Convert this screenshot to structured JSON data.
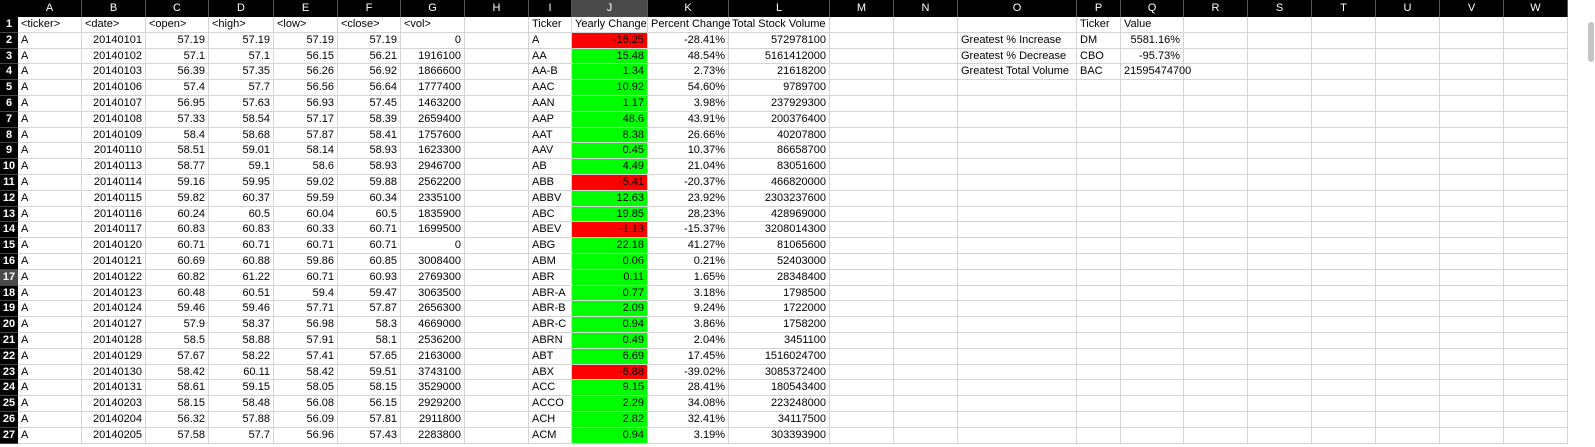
{
  "spreadsheet": {
    "columns": [
      "A",
      "B",
      "C",
      "D",
      "E",
      "F",
      "G",
      "H",
      "I",
      "J",
      "K",
      "L",
      "M",
      "N",
      "O",
      "P",
      "Q",
      "R",
      "S",
      "T",
      "U",
      "V",
      "W"
    ],
    "selected_column": "J",
    "selected_row": "17",
    "row_numbers": [
      "1",
      "2",
      "3",
      "4",
      "5",
      "6",
      "7",
      "8",
      "9",
      "10",
      "11",
      "12",
      "13",
      "14",
      "15",
      "16",
      "17",
      "18",
      "19",
      "20",
      "21",
      "22",
      "23",
      "24",
      "25",
      "26",
      "27"
    ],
    "raw_headers": [
      "<ticker>",
      "<date>",
      "<open>",
      "<high>",
      "<low>",
      "<close>",
      "<vol>"
    ],
    "raw_rows": [
      [
        "A",
        "20140101",
        "57.19",
        "57.19",
        "57.19",
        "57.19",
        "0"
      ],
      [
        "A",
        "20140102",
        "57.1",
        "57.1",
        "56.15",
        "56.21",
        "1916100"
      ],
      [
        "A",
        "20140103",
        "56.39",
        "57.35",
        "56.26",
        "56.92",
        "1866600"
      ],
      [
        "A",
        "20140106",
        "57.4",
        "57.7",
        "56.56",
        "56.64",
        "1777400"
      ],
      [
        "A",
        "20140107",
        "56.95",
        "57.63",
        "56.93",
        "57.45",
        "1463200"
      ],
      [
        "A",
        "20140108",
        "57.33",
        "58.54",
        "57.17",
        "58.39",
        "2659400"
      ],
      [
        "A",
        "20140109",
        "58.4",
        "58.68",
        "57.87",
        "58.41",
        "1757600"
      ],
      [
        "A",
        "20140110",
        "58.51",
        "59.01",
        "58.14",
        "58.93",
        "1623300"
      ],
      [
        "A",
        "20140113",
        "58.77",
        "59.1",
        "58.6",
        "58.93",
        "2946700"
      ],
      [
        "A",
        "20140114",
        "59.16",
        "59.95",
        "59.02",
        "59.88",
        "2562200"
      ],
      [
        "A",
        "20140115",
        "59.82",
        "60.37",
        "59.59",
        "60.34",
        "2335100"
      ],
      [
        "A",
        "20140116",
        "60.24",
        "60.5",
        "60.04",
        "60.5",
        "1835900"
      ],
      [
        "A",
        "20140117",
        "60.83",
        "60.83",
        "60.33",
        "60.71",
        "1699500"
      ],
      [
        "A",
        "20140120",
        "60.71",
        "60.71",
        "60.71",
        "60.71",
        "0"
      ],
      [
        "A",
        "20140121",
        "60.69",
        "60.88",
        "59.86",
        "60.85",
        "3008400"
      ],
      [
        "A",
        "20140122",
        "60.82",
        "61.22",
        "60.71",
        "60.93",
        "2769300"
      ],
      [
        "A",
        "20140123",
        "60.48",
        "60.51",
        "59.4",
        "59.47",
        "3063500"
      ],
      [
        "A",
        "20140124",
        "59.46",
        "59.46",
        "57.71",
        "57.87",
        "2656300"
      ],
      [
        "A",
        "20140127",
        "57.9",
        "58.37",
        "56.98",
        "58.3",
        "4669000"
      ],
      [
        "A",
        "20140128",
        "58.5",
        "58.88",
        "57.91",
        "58.1",
        "2536200"
      ],
      [
        "A",
        "20140129",
        "57.67",
        "58.22",
        "57.41",
        "57.65",
        "2163000"
      ],
      [
        "A",
        "20140130",
        "58.42",
        "60.11",
        "58.42",
        "59.51",
        "3743100"
      ],
      [
        "A",
        "20140131",
        "58.61",
        "59.15",
        "58.05",
        "58.15",
        "3529000"
      ],
      [
        "A",
        "20140203",
        "58.15",
        "58.48",
        "56.08",
        "56.15",
        "2929200"
      ],
      [
        "A",
        "20140204",
        "56.32",
        "57.88",
        "56.09",
        "57.81",
        "2911800"
      ],
      [
        "A",
        "20140205",
        "57.58",
        "57.7",
        "56.96",
        "57.43",
        "2283800"
      ]
    ],
    "summary_headers": [
      "Ticker",
      "Yearly Change",
      "Percent Change",
      "Total Stock Volume"
    ],
    "summary_rows": [
      [
        "A",
        "-16.25",
        "-28.41%",
        "572978100",
        "neg"
      ],
      [
        "AA",
        "15.48",
        "48.54%",
        "5161412000",
        "pos"
      ],
      [
        "AA-B",
        "1.34",
        "2.73%",
        "21618200",
        "pos"
      ],
      [
        "AAC",
        "10.92",
        "54.60%",
        "9789700",
        "pos"
      ],
      [
        "AAN",
        "1.17",
        "3.98%",
        "237929300",
        "pos"
      ],
      [
        "AAP",
        "48.6",
        "43.91%",
        "200376400",
        "pos"
      ],
      [
        "AAT",
        "8.38",
        "26.66%",
        "40207800",
        "pos"
      ],
      [
        "AAV",
        "0.45",
        "10.37%",
        "86658700",
        "pos"
      ],
      [
        "AB",
        "4.49",
        "21.04%",
        "83051600",
        "pos"
      ],
      [
        "ABB",
        "-5.41",
        "-20.37%",
        "466820000",
        "neg"
      ],
      [
        "ABBV",
        "12.63",
        "23.92%",
        "2303237600",
        "pos"
      ],
      [
        "ABC",
        "19.85",
        "28.23%",
        "428969000",
        "pos"
      ],
      [
        "ABEV",
        "-1.13",
        "-15.37%",
        "3208014300",
        "neg"
      ],
      [
        "ABG",
        "22.18",
        "41.27%",
        "81065600",
        "pos"
      ],
      [
        "ABM",
        "0.06",
        "0.21%",
        "52403000",
        "pos"
      ],
      [
        "ABR",
        "0.11",
        "1.65%",
        "28348400",
        "pos"
      ],
      [
        "ABR-A",
        "0.77",
        "3.18%",
        "1798500",
        "pos"
      ],
      [
        "ABR-B",
        "2.09",
        "9.24%",
        "1722000",
        "pos"
      ],
      [
        "ABR-C",
        "0.94",
        "3.86%",
        "1758200",
        "pos"
      ],
      [
        "ABRN",
        "0.49",
        "2.04%",
        "3451100",
        "pos"
      ],
      [
        "ABT",
        "6.69",
        "17.45%",
        "1516024700",
        "pos"
      ],
      [
        "ABX",
        "-6.88",
        "-39.02%",
        "3085372400",
        "neg"
      ],
      [
        "ACC",
        "9.15",
        "28.41%",
        "180543400",
        "pos"
      ],
      [
        "ACCO",
        "2.29",
        "34.08%",
        "223248000",
        "pos"
      ],
      [
        "ACH",
        "2.82",
        "32.41%",
        "34117500",
        "pos"
      ],
      [
        "ACM",
        "0.94",
        "3.19%",
        "303393900",
        "pos"
      ]
    ],
    "greatest_headers": [
      "Ticker",
      "Value"
    ],
    "greatest_rows": [
      [
        "Greatest % Increase",
        "DM",
        "5581.16%"
      ],
      [
        "Greatest % Decrease",
        "CBO",
        "-95.73%"
      ],
      [
        "Greatest Total Volume",
        "BAC",
        "21595474700"
      ]
    ],
    "colors": {
      "positive": "#00ff00",
      "negative": "#ff0000",
      "header_bg": "#000000"
    }
  }
}
